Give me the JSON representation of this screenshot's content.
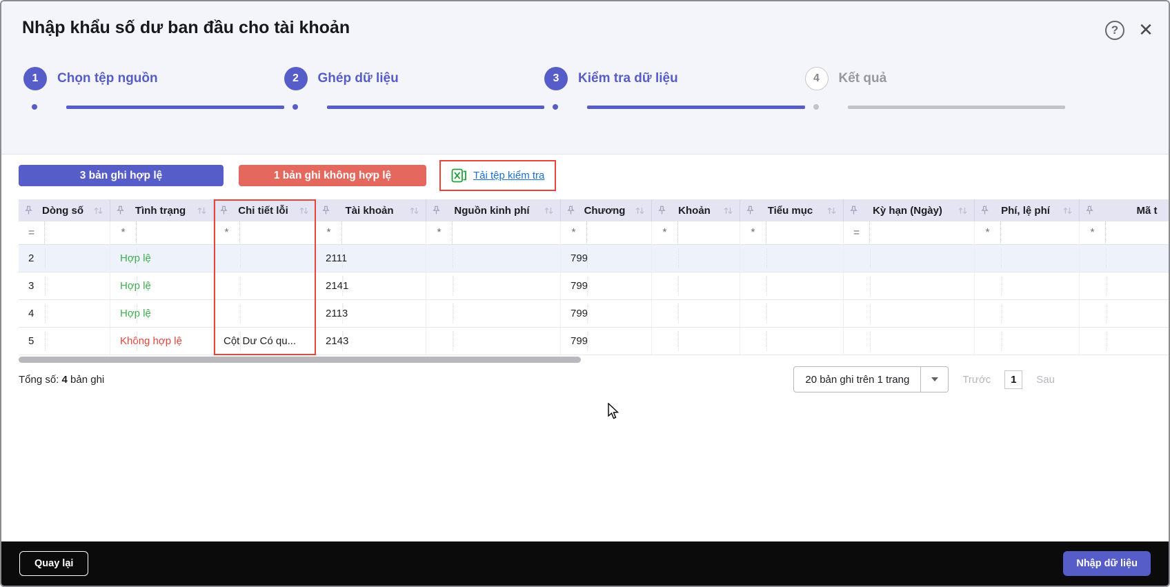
{
  "dialog": {
    "title": "Nhập khẩu số dư ban đầu cho tài khoản"
  },
  "icons": {
    "help": "?",
    "close": "✕",
    "dropdown_arrow": "▼",
    "sort": "up-down-arrows",
    "pin": "push-pin",
    "excel": "excel-x-bracket",
    "cursor": "arrow-pointer"
  },
  "stepper": {
    "steps": [
      {
        "number": "1",
        "label": "Chọn tệp nguồn",
        "state": "done"
      },
      {
        "number": "2",
        "label": "Ghép dữ liệu",
        "state": "done"
      },
      {
        "number": "3",
        "label": "Kiểm tra dữ liệu",
        "state": "active"
      },
      {
        "number": "4",
        "label": "Kết quả",
        "state": "pending"
      }
    ]
  },
  "summary": {
    "valid_badge": "3 bản ghi hợp lệ",
    "invalid_badge": "1 bản ghi không hợp lệ",
    "download_link": "Tải tệp kiểm tra"
  },
  "table": {
    "columns": [
      {
        "label": "Dòng số",
        "operator": "="
      },
      {
        "label": "Tình trạng",
        "operator": "*"
      },
      {
        "label": "Chi tiết lỗi",
        "operator": "*",
        "highlighted": true
      },
      {
        "label": "Tài khoản",
        "operator": "*"
      },
      {
        "label": "Nguồn kinh phí",
        "operator": "*"
      },
      {
        "label": "Chương",
        "operator": "*"
      },
      {
        "label": "Khoản",
        "operator": "*"
      },
      {
        "label": "Tiểu mục",
        "operator": "*"
      },
      {
        "label": "Kỳ hạn (Ngày)",
        "operator": "="
      },
      {
        "label": "Phí, lệ phí",
        "operator": "*"
      },
      {
        "label": "Mã t",
        "operator": "*"
      }
    ],
    "rows": [
      {
        "status": "valid",
        "selected": true,
        "cells": [
          "2",
          "Hợp lệ",
          "",
          "2111",
          "",
          "799",
          "",
          "",
          "",
          "",
          ""
        ]
      },
      {
        "status": "valid",
        "selected": false,
        "cells": [
          "3",
          "Hợp lệ",
          "",
          "2141",
          "",
          "799",
          "",
          "",
          "",
          "",
          ""
        ]
      },
      {
        "status": "valid",
        "selected": false,
        "cells": [
          "4",
          "Hợp lệ",
          "",
          "2113",
          "",
          "799",
          "",
          "",
          "",
          "",
          ""
        ]
      },
      {
        "status": "invalid",
        "selected": false,
        "cells": [
          "5",
          "Không hợp lệ",
          "Cột Dư Có qu...",
          "2143",
          "",
          "799",
          "",
          "",
          "",
          "",
          ""
        ]
      }
    ]
  },
  "footer": {
    "total_prefix": "Tổng số:",
    "total_value": "4",
    "total_suffix": " bản ghi",
    "page_size": "20 bản ghi trên 1 trang",
    "prev_label": "Trước",
    "page_number": "1",
    "next_label": "Sau"
  },
  "actions": {
    "back_label": "Quay lại",
    "import_label": "Nhập dữ liệu"
  },
  "colors": {
    "accent": "#565cc8",
    "invalid_badge": "#e5685e",
    "highlight_red": "#e8443a",
    "link_blue": "#1a6fd4",
    "valid_green": "#3cae50",
    "invalid_red": "#e8443a",
    "excel_green": "#21a038"
  }
}
